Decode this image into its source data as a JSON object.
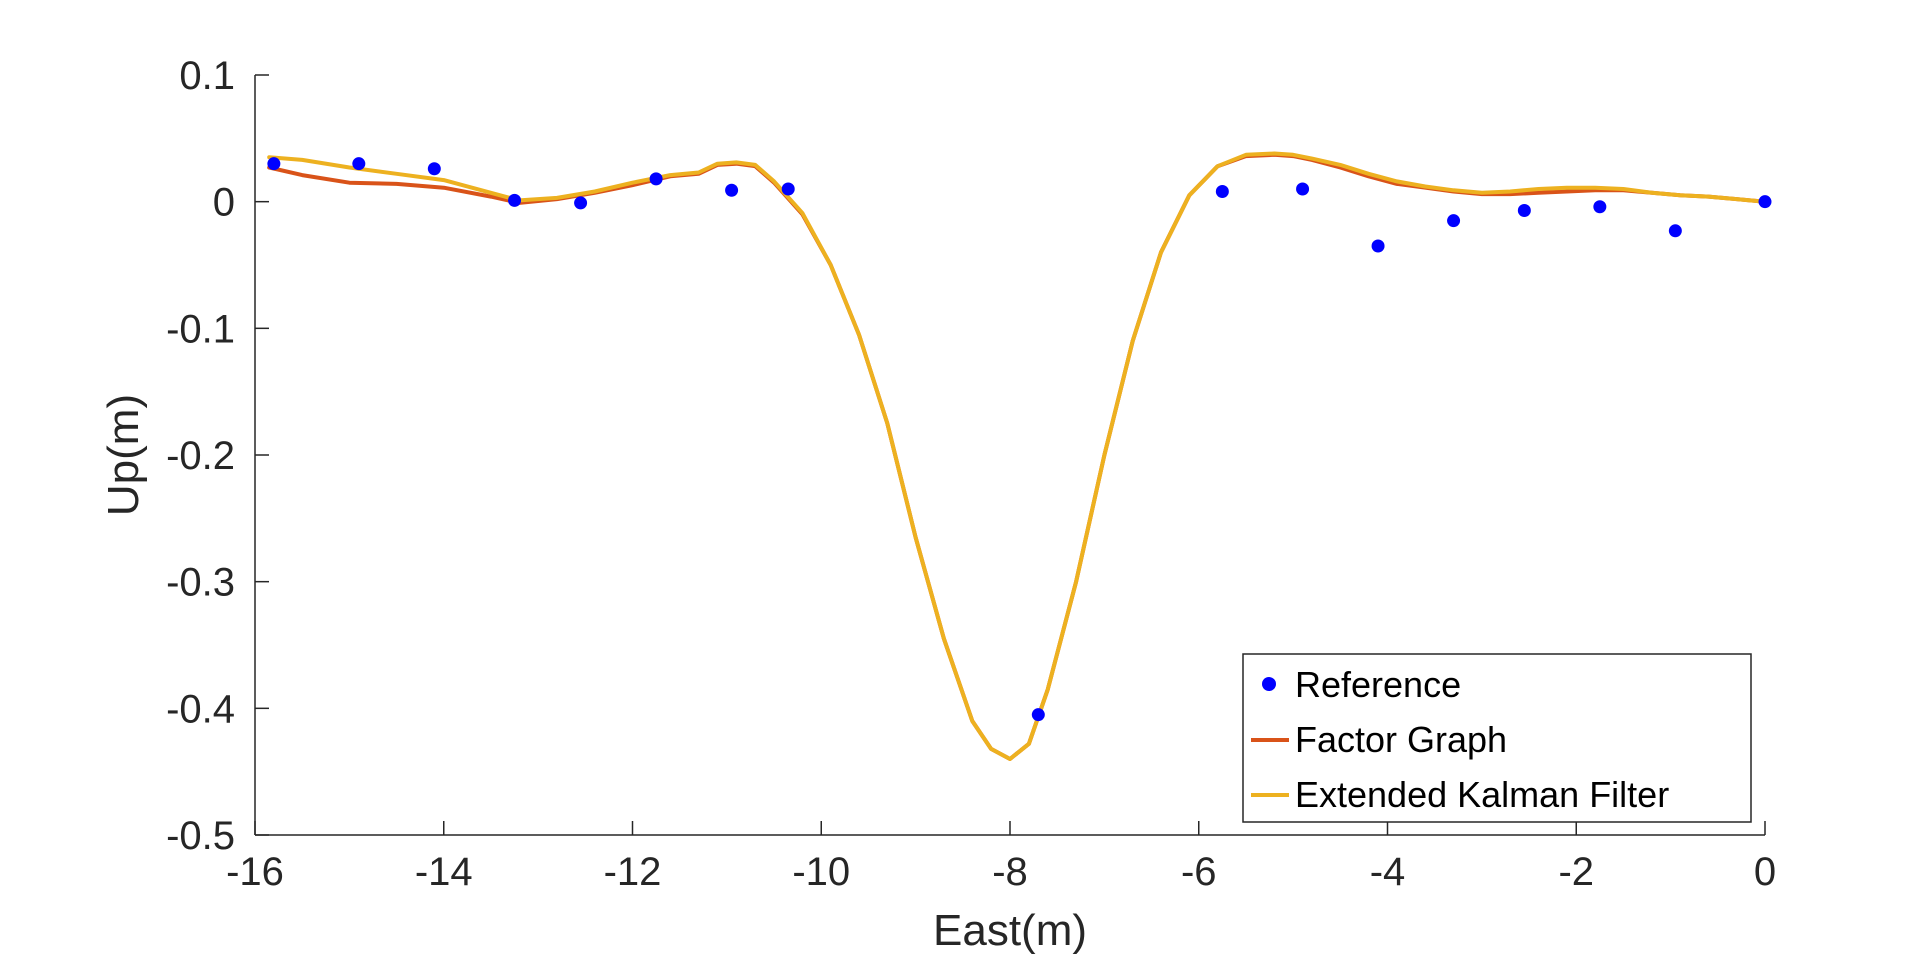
{
  "chart_data": {
    "type": "line",
    "xlabel": "East(m)",
    "ylabel": "Up(m)",
    "xlim": [
      -16,
      0
    ],
    "ylim": [
      -0.5,
      0.1
    ],
    "xticks": [
      -16,
      -14,
      -12,
      -10,
      -8,
      -6,
      -4,
      -2,
      0
    ],
    "xtick_labels": [
      "-16",
      "-14",
      "-12",
      "-10",
      "-8",
      "-6",
      "-4",
      "-2",
      "0"
    ],
    "yticks": [
      0.1,
      0,
      -0.1,
      -0.2,
      -0.3,
      -0.4,
      -0.5
    ],
    "ytick_labels": [
      "0.1",
      "0",
      "-0.1",
      "-0.2",
      "-0.3",
      "-0.4",
      "-0.5"
    ],
    "grid": false,
    "legend_position": "bottom-right",
    "series": [
      {
        "name": "Reference",
        "type": "scatter",
        "color": "#0000ff",
        "x": [
          -15.8,
          -14.9,
          -14.1,
          -13.25,
          -12.55,
          -11.75,
          -10.95,
          -10.35,
          -7.7,
          -5.75,
          -4.9,
          -4.1,
          -3.3,
          -2.55,
          -1.75,
          -0.95,
          0
        ],
        "y": [
          0.03,
          0.03,
          0.026,
          0.001,
          -0.001,
          0.018,
          0.009,
          0.01,
          -0.405,
          0.008,
          0.01,
          -0.035,
          -0.015,
          -0.007,
          -0.004,
          -0.023,
          0
        ]
      },
      {
        "name": "Factor Graph",
        "type": "line",
        "color": "#d95319",
        "x": [
          -15.85,
          -15.5,
          -15,
          -14.5,
          -14,
          -13.5,
          -13.2,
          -12.8,
          -12.4,
          -12,
          -11.6,
          -11.3,
          -11.1,
          -10.9,
          -10.7,
          -10.5,
          -10.2,
          -9.9,
          -9.6,
          -9.3,
          -9.0,
          -8.7,
          -8.4,
          -8.2,
          -8.0,
          -7.8,
          -7.6,
          -7.3,
          -7.0,
          -6.7,
          -6.4,
          -6.1,
          -5.8,
          -5.5,
          -5.2,
          -5.0,
          -4.8,
          -4.5,
          -4.2,
          -3.9,
          -3.6,
          -3.3,
          -3.0,
          -2.7,
          -2.4,
          -2.1,
          -1.8,
          -1.5,
          -1.2,
          -0.9,
          -0.6,
          -0.3,
          0
        ],
        "y": [
          0.027,
          0.021,
          0.015,
          0.014,
          0.011,
          0.004,
          -0.001,
          0.002,
          0.007,
          0.013,
          0.02,
          0.022,
          0.029,
          0.03,
          0.028,
          0.015,
          -0.01,
          -0.05,
          -0.105,
          -0.175,
          -0.265,
          -0.345,
          -0.41,
          -0.432,
          -0.44,
          -0.428,
          -0.385,
          -0.3,
          -0.2,
          -0.11,
          -0.04,
          0.005,
          0.028,
          0.036,
          0.037,
          0.036,
          0.033,
          0.027,
          0.02,
          0.014,
          0.011,
          0.008,
          0.006,
          0.006,
          0.007,
          0.008,
          0.009,
          0.009,
          0.007,
          0.005,
          0.004,
          0.002,
          0
        ]
      },
      {
        "name": "Extended Kalman Filter",
        "type": "line",
        "color": "#edb120",
        "x": [
          -15.85,
          -15.5,
          -15,
          -14.5,
          -14,
          -13.5,
          -13.2,
          -12.8,
          -12.4,
          -12,
          -11.6,
          -11.3,
          -11.1,
          -10.9,
          -10.7,
          -10.5,
          -10.2,
          -9.9,
          -9.6,
          -9.3,
          -9.0,
          -8.7,
          -8.4,
          -8.2,
          -8.0,
          -7.8,
          -7.6,
          -7.3,
          -7.0,
          -6.7,
          -6.4,
          -6.1,
          -5.8,
          -5.5,
          -5.2,
          -5.0,
          -4.8,
          -4.5,
          -4.2,
          -3.9,
          -3.6,
          -3.3,
          -3.0,
          -2.7,
          -2.4,
          -2.1,
          -1.8,
          -1.5,
          -1.2,
          -0.9,
          -0.6,
          -0.3,
          0
        ],
        "y": [
          0.035,
          0.033,
          0.027,
          0.022,
          0.017,
          0.007,
          0.001,
          0.003,
          0.008,
          0.015,
          0.021,
          0.023,
          0.03,
          0.031,
          0.029,
          0.016,
          -0.009,
          -0.05,
          -0.105,
          -0.175,
          -0.265,
          -0.345,
          -0.41,
          -0.432,
          -0.44,
          -0.428,
          -0.385,
          -0.3,
          -0.2,
          -0.11,
          -0.04,
          0.005,
          0.028,
          0.037,
          0.038,
          0.037,
          0.034,
          0.029,
          0.022,
          0.016,
          0.012,
          0.009,
          0.007,
          0.008,
          0.01,
          0.011,
          0.011,
          0.01,
          0.007,
          0.005,
          0.004,
          0.002,
          0
        ]
      }
    ]
  }
}
